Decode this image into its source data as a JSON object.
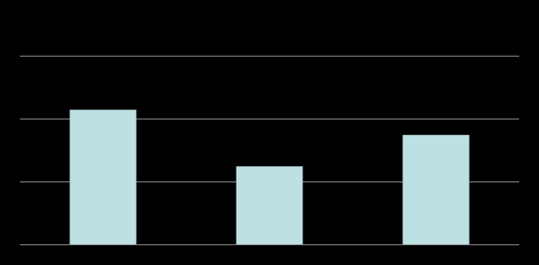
{
  "chart_data": {
    "type": "bar",
    "categories": [
      null,
      null,
      null
    ],
    "values": [
      2.14,
      1.24,
      1.74
    ],
    "color": "#bde0e3",
    "ylim": [
      0,
      3
    ],
    "yticks": [
      0,
      1,
      2,
      3
    ],
    "grid": true
  }
}
